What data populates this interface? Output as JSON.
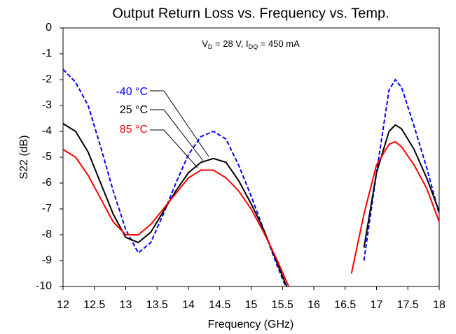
{
  "chart_data": {
    "type": "line",
    "title": "Output Return Loss vs. Frequency vs. Temp.",
    "annotation": [
      "V",
      "D",
      " = 28 V, I",
      "DQ",
      " = 450 mA"
    ],
    "x_label": "Frequency (GHz)",
    "y_label": "S22 (dB)",
    "x": [
      12,
      12.2,
      12.4,
      12.6,
      12.8,
      13,
      13.2,
      13.4,
      13.6,
      13.8,
      14,
      14.2,
      14.4,
      14.6,
      14.8,
      15,
      15.2,
      15.4,
      15.6,
      15.8,
      16,
      16.2,
      16.4,
      16.6,
      16.8,
      17,
      17.2,
      17.3,
      17.4,
      17.6,
      17.8,
      18
    ],
    "series": [
      {
        "name": "-40 °C",
        "color": "#0000ff",
        "dashed": true,
        "values": [
          -1.6,
          -2.1,
          -3.0,
          -4.6,
          -6.3,
          -7.8,
          -8.7,
          -8.3,
          -7.2,
          -6.0,
          -4.9,
          -4.2,
          -4.0,
          -4.3,
          -5.3,
          -6.5,
          -7.8,
          -9.1,
          -10.3,
          null,
          null,
          null,
          null,
          null,
          -9.0,
          -5.6,
          -2.4,
          -2.0,
          -2.3,
          -3.8,
          -5.4,
          -7.2
        ]
      },
      {
        "name": "25 °C",
        "color": "#000000",
        "dashed": false,
        "values": [
          -3.7,
          -4.0,
          -4.8,
          -6.0,
          -7.2,
          -8.1,
          -8.3,
          -7.9,
          -7.1,
          -6.3,
          -5.6,
          -5.2,
          -5.05,
          -5.2,
          -5.9,
          -6.8,
          -7.8,
          -9.0,
          -10.2,
          null,
          null,
          null,
          null,
          null,
          -8.5,
          -5.6,
          -4.0,
          -3.75,
          -3.9,
          -4.7,
          -5.8,
          -7.1
        ]
      },
      {
        "name": "85 °C",
        "color": "#ff0000",
        "dashed": false,
        "values": [
          -4.7,
          -5.0,
          -5.7,
          -6.6,
          -7.5,
          -8.0,
          -8.0,
          -7.6,
          -7.0,
          -6.4,
          -5.8,
          -5.5,
          -5.5,
          -5.8,
          -6.3,
          -7.0,
          -7.9,
          -8.9,
          -10.0,
          null,
          null,
          null,
          null,
          -9.5,
          -7.2,
          -5.3,
          -4.5,
          -4.4,
          -4.6,
          -5.3,
          -6.2,
          -7.5
        ]
      }
    ],
    "xlim": [
      12,
      18
    ],
    "xticks": [
      12,
      12.5,
      13,
      13.5,
      14,
      14.5,
      15,
      15.5,
      16,
      16.5,
      17,
      17.5,
      18
    ],
    "ylim": [
      -10,
      0
    ],
    "yticks": [
      -10,
      -9,
      -8,
      -7,
      -6,
      -5,
      -4,
      -3,
      -2,
      -1,
      0
    ],
    "grid": false
  }
}
